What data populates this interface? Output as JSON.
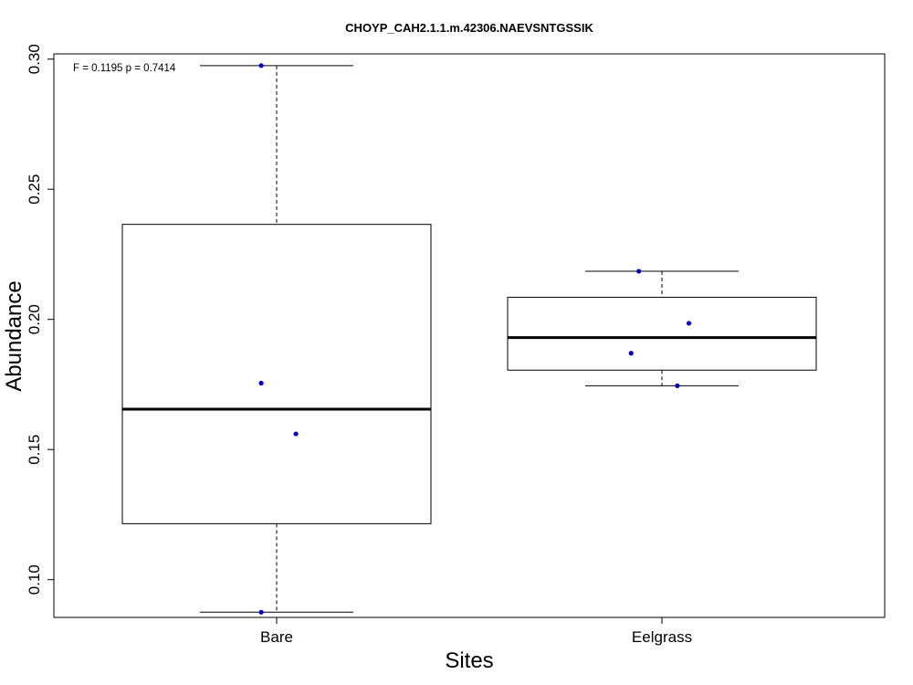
{
  "chart_data": {
    "type": "boxplot",
    "title": "CHOYP_CAH2.1.1.m.42306.NAEVSNTGSSIK",
    "xlabel": "Sites",
    "ylabel": "Abundance",
    "annotation": "F = 0.1195 p = 0.7414",
    "categories": [
      "Bare",
      "Eelgrass"
    ],
    "y_ticks": [
      0.1,
      0.15,
      0.2,
      0.25,
      0.3
    ],
    "y_tick_labels": [
      "0.10",
      "0.15",
      "0.20",
      "0.25",
      "0.30"
    ],
    "ylim": [
      0.0855,
      0.302
    ],
    "boxes": [
      {
        "category": "Bare",
        "whisker_low": 0.0875,
        "q1": 0.1215,
        "median": 0.1655,
        "q3": 0.2365,
        "whisker_high": 0.2975
      },
      {
        "category": "Eelgrass",
        "whisker_low": 0.1745,
        "q1": 0.1805,
        "median": 0.193,
        "q3": 0.2085,
        "whisker_high": 0.2185
      }
    ],
    "points": [
      {
        "category": "Bare",
        "jitter": -0.04,
        "y": 0.2975
      },
      {
        "category": "Bare",
        "jitter": -0.04,
        "y": 0.1755
      },
      {
        "category": "Bare",
        "jitter": 0.05,
        "y": 0.156
      },
      {
        "category": "Bare",
        "jitter": -0.04,
        "y": 0.0875
      },
      {
        "category": "Eelgrass",
        "jitter": -0.06,
        "y": 0.2185
      },
      {
        "category": "Eelgrass",
        "jitter": 0.07,
        "y": 0.1985
      },
      {
        "category": "Eelgrass",
        "jitter": -0.08,
        "y": 0.187
      },
      {
        "category": "Eelgrass",
        "jitter": 0.04,
        "y": 0.1745
      }
    ],
    "point_color": "#0000cc",
    "box_color": "#000000",
    "grid": false,
    "legend": "none"
  }
}
